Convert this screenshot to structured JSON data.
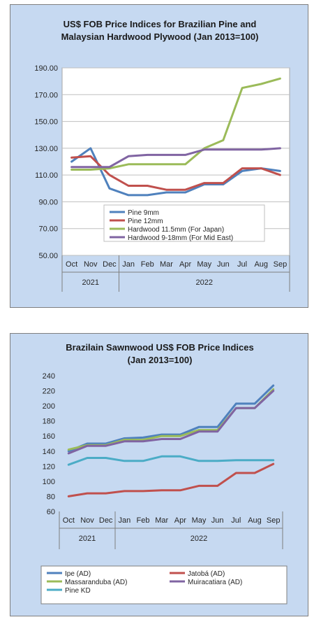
{
  "chart_data": [
    {
      "type": "line",
      "title_lines": [
        "US$ FOB Price Indices for Brazilian Pine and",
        "Malaysian Hardwood Plywood (Jan 2013=100)"
      ],
      "categories": [
        "Oct",
        "Nov",
        "Dec",
        "Jan",
        "Feb",
        "Mar",
        "Apr",
        "May",
        "Jun",
        "Jul",
        "Aug",
        "Sep"
      ],
      "year_groups": [
        {
          "label": "2021",
          "start": 0,
          "end": 2
        },
        {
          "label": "2022",
          "start": 3,
          "end": 11
        }
      ],
      "ylim": [
        50,
        190
      ],
      "y_ticks": [
        50,
        70,
        90,
        110,
        130,
        150,
        170,
        190
      ],
      "y_tick_labels": [
        "50.00",
        "70.00",
        "90.00",
        "110.00",
        "130.00",
        "150.00",
        "170.00",
        "190.00"
      ],
      "grid": true,
      "legend_placement": "inside-bottom-center",
      "series": [
        {
          "name": "Pine 9mm",
          "color": "#4f81bd",
          "values": [
            120,
            130,
            100,
            95,
            95,
            97,
            97,
            103,
            103,
            113,
            115,
            113
          ]
        },
        {
          "name": "Pine 12mm",
          "color": "#c0504d",
          "values": [
            123,
            124,
            110,
            102,
            102,
            99,
            99,
            104,
            104,
            115,
            115,
            110
          ]
        },
        {
          "name": "Hardwood 11.5mm (For Japan)",
          "color": "#9bbb59",
          "values": [
            114,
            114,
            115,
            118,
            118,
            118,
            118,
            130,
            136,
            175,
            178,
            182
          ]
        },
        {
          "name": "Hardwood 9-18mm (For Mid East)",
          "color": "#8064a2",
          "values": [
            116,
            116,
            116,
            124,
            125,
            125,
            125,
            129,
            129,
            129,
            129,
            130
          ]
        }
      ]
    },
    {
      "type": "line",
      "title_lines": [
        "Brazilain Sawnwood US$ FOB Price Indices",
        "(Jan 2013=100)"
      ],
      "categories": [
        "Oct",
        "Nov",
        "Dec",
        "Jan",
        "Feb",
        "Mar",
        "Apr",
        "May",
        "Jun",
        "Jul",
        "Aug",
        "Sep"
      ],
      "year_groups": [
        {
          "label": "2021",
          "start": 0,
          "end": 2
        },
        {
          "label": "2022",
          "start": 3,
          "end": 11
        }
      ],
      "ylim": [
        60,
        240
      ],
      "y_ticks": [
        60,
        80,
        100,
        120,
        140,
        160,
        180,
        200,
        220,
        240
      ],
      "y_tick_labels": [
        "60",
        "80",
        "100",
        "120",
        "140",
        "160",
        "180",
        "200",
        "220",
        "240"
      ],
      "grid": false,
      "legend_placement": "bottom",
      "series": [
        {
          "name": "Ipe (AD)",
          "color": "#4f81bd",
          "values": [
            140,
            150,
            150,
            157,
            158,
            162,
            162,
            172,
            172,
            203,
            203,
            227
          ]
        },
        {
          "name": "Jatobá (AD)",
          "color": "#c0504d",
          "values": [
            80,
            84,
            84,
            87,
            87,
            88,
            88,
            94,
            94,
            111,
            111,
            123
          ]
        },
        {
          "name": "Massaranduba (AD)",
          "color": "#9bbb59",
          "values": [
            142,
            148,
            148,
            155,
            155,
            160,
            160,
            168,
            168,
            197,
            197,
            222
          ]
        },
        {
          "name": "Muiracatiara (AD)",
          "color": "#8064a2",
          "values": [
            137,
            147,
            147,
            153,
            153,
            156,
            156,
            166,
            166,
            197,
            197,
            220
          ]
        },
        {
          "name": "Pine KD",
          "color": "#4bacc6",
          "values": [
            122,
            131,
            131,
            127,
            127,
            133,
            133,
            127,
            127,
            128,
            128,
            128
          ]
        }
      ]
    }
  ]
}
